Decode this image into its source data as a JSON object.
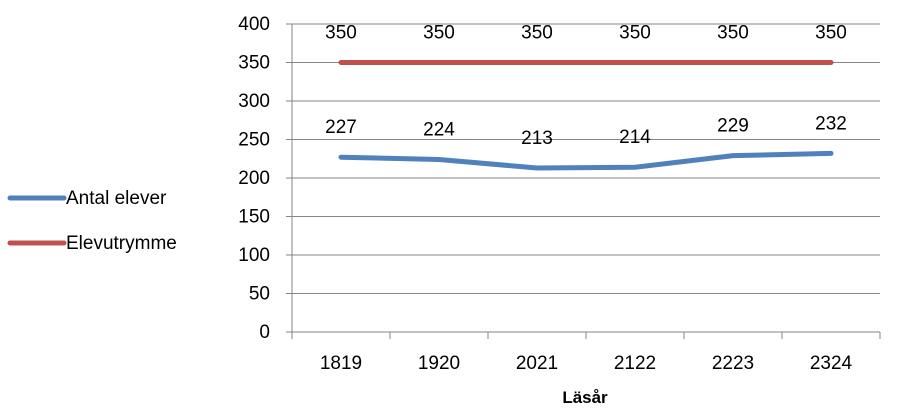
{
  "chart_data": {
    "type": "line",
    "categories": [
      "1819",
      "1920",
      "2021",
      "2122",
      "2223",
      "2324"
    ],
    "series": [
      {
        "name": "Antal elever",
        "values": [
          227,
          224,
          213,
          214,
          229,
          232
        ],
        "color": "#4F81BD"
      },
      {
        "name": "Elevutrymme",
        "values": [
          350,
          350,
          350,
          350,
          350,
          350
        ],
        "color": "#C0504D"
      }
    ],
    "title": "",
    "xlabel": "Läsår",
    "ylabel": "",
    "ylim": [
      0,
      400
    ],
    "yticks": [
      0,
      50,
      100,
      150,
      200,
      250,
      300,
      350,
      400
    ],
    "grid": true,
    "legend_position": "left",
    "data_labels": true
  }
}
